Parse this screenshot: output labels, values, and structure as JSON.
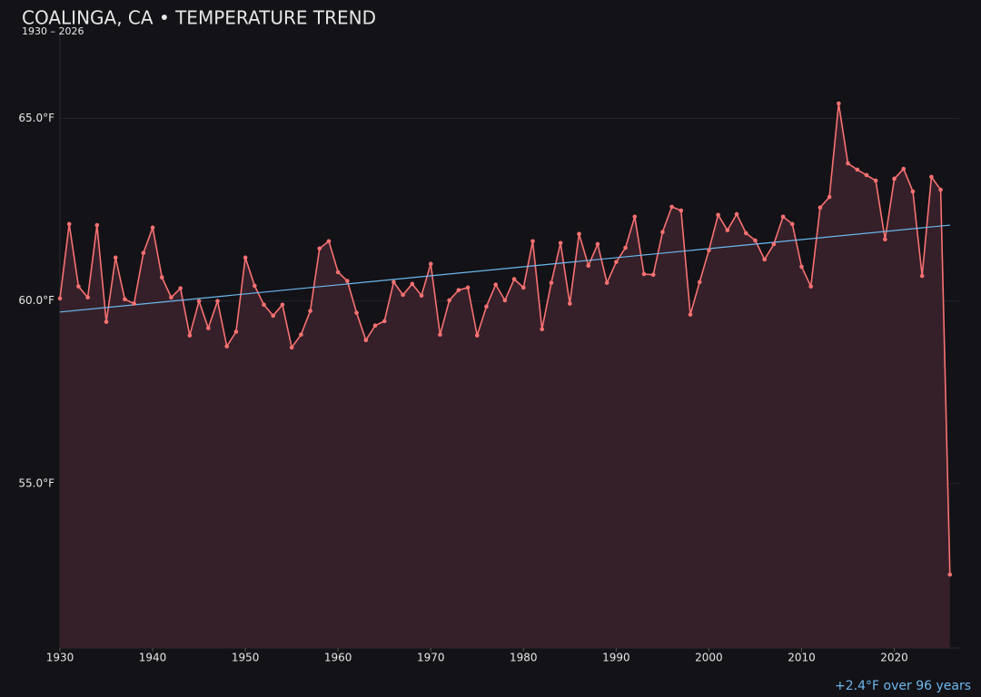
{
  "chart_data": {
    "type": "line",
    "title": "COALINGA, CA • TEMPERATURE TREND",
    "subtitle": "1930 – 2026",
    "annotation": "+2.4°F over 96 years",
    "x": [
      1930,
      1931,
      1932,
      1933,
      1934,
      1935,
      1936,
      1937,
      1938,
      1939,
      1940,
      1941,
      1942,
      1943,
      1944,
      1945,
      1946,
      1947,
      1948,
      1949,
      1950,
      1951,
      1952,
      1953,
      1954,
      1955,
      1956,
      1957,
      1958,
      1959,
      1960,
      1961,
      1962,
      1963,
      1964,
      1965,
      1966,
      1967,
      1968,
      1969,
      1970,
      1971,
      1972,
      1973,
      1974,
      1975,
      1976,
      1977,
      1978,
      1979,
      1980,
      1981,
      1982,
      1983,
      1984,
      1985,
      1986,
      1987,
      1988,
      1989,
      1990,
      1991,
      1992,
      1993,
      1994,
      1995,
      1996,
      1997,
      1998,
      1999,
      2000,
      2001,
      2002,
      2003,
      2004,
      2005,
      2006,
      2007,
      2008,
      2009,
      2010,
      2011,
      2012,
      2013,
      2014,
      2015,
      2016,
      2017,
      2018,
      2019,
      2020,
      2021,
      2022,
      2023,
      2024,
      2025,
      2026
    ],
    "series": [
      {
        "color": "#f87171",
        "area_color": "#35202a",
        "values": [
          60.07,
          62.11,
          60.4,
          60.1,
          62.08,
          59.43,
          61.19,
          60.05,
          59.93,
          61.32,
          62.01,
          60.65,
          60.1,
          60.35,
          59.06,
          60.0,
          59.26,
          60.0,
          58.76,
          59.16,
          61.19,
          60.42,
          59.9,
          59.6,
          59.9,
          58.73,
          59.08,
          59.73,
          61.44,
          61.64,
          60.79,
          60.55,
          59.68,
          58.93,
          59.33,
          59.45,
          60.52,
          60.17,
          60.47,
          60.15,
          61.02,
          59.08,
          60.02,
          60.3,
          60.37,
          59.06,
          59.85,
          60.45,
          60.02,
          60.6,
          60.37,
          61.64,
          59.23,
          60.5,
          61.59,
          59.93,
          61.84,
          60.97,
          61.56,
          60.5,
          61.07,
          61.46,
          62.31,
          60.74,
          60.72,
          61.89,
          62.58,
          62.48,
          59.63,
          60.52,
          61.39,
          62.36,
          61.94,
          62.38,
          61.86,
          61.66,
          61.14,
          61.56,
          62.31,
          62.11,
          60.94,
          60.4,
          62.56,
          62.85,
          65.41,
          63.77,
          63.6,
          63.45,
          63.3,
          61.69,
          63.35,
          63.62,
          63.0,
          60.69,
          63.4,
          63.05,
          52.51
        ]
      }
    ],
    "trend": {
      "color": "#6cb8ee",
      "x": [
        1930,
        2026
      ],
      "values": [
        59.7,
        62.08
      ]
    },
    "xlim": [
      1930,
      2027
    ],
    "ylim": [
      50.5,
      67.3
    ],
    "xticks": [
      1930,
      1940,
      1950,
      1960,
      1970,
      1980,
      1990,
      2000,
      2010,
      2020
    ],
    "yticks": [
      {
        "value": 55,
        "label": "55.0°F"
      },
      {
        "value": 60,
        "label": "60.0°F"
      },
      {
        "value": 65,
        "label": "65.0°F"
      }
    ],
    "grid": true
  }
}
